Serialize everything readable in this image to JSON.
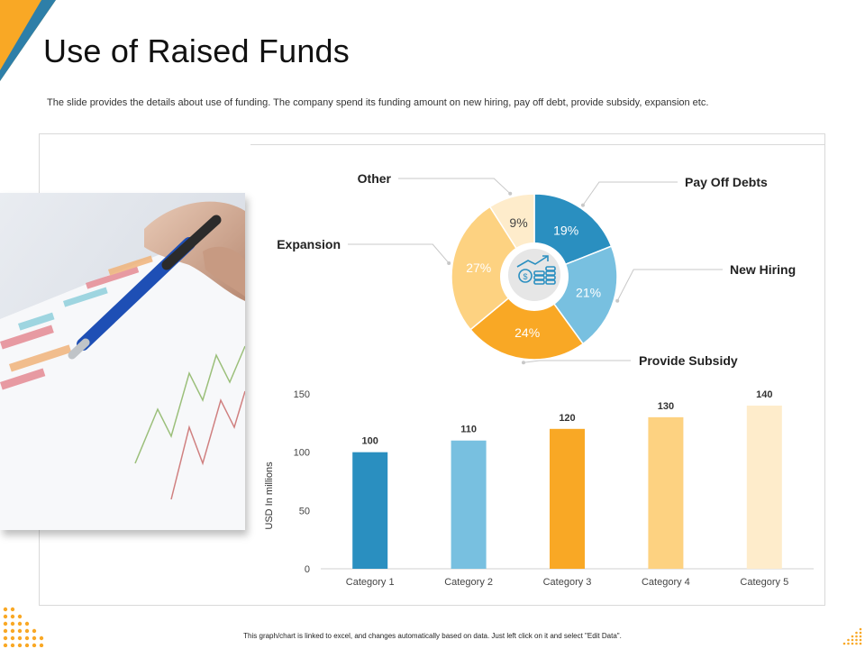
{
  "slide": {
    "title": "Use of Raised Funds",
    "subtitle": "The slide provides the details about use of funding. The company spend its funding amount on new hiring, pay off debt, provide subsidy, expansion etc.",
    "footer_note": "This graph/chart is linked to excel, and changes automatically based on data. Just left click on it and select \"Edit Data\".",
    "accent_color": "#F9A825",
    "accent_dark": "#2E7FA8",
    "photo_icon": "pen-on-chart-photo",
    "center_icon": "money-growth-icon"
  },
  "chart_data": [
    {
      "type": "pie",
      "style": "donut",
      "slices": [
        {
          "label": "Pay Off Debts",
          "value": 19,
          "display": "19%",
          "color": "#2A8FC0"
        },
        {
          "label": "New Hiring",
          "value": 21,
          "display": "21%",
          "color": "#78C0E0"
        },
        {
          "label": "Provide Subsidy",
          "value": 24,
          "display": "24%",
          "color": "#F9A825"
        },
        {
          "label": "Expansion",
          "value": 27,
          "display": "27%",
          "color": "#FDD281"
        },
        {
          "label": "Other",
          "value": 9,
          "display": "9%",
          "color": "#FEECCB"
        }
      ]
    },
    {
      "type": "bar",
      "categories": [
        "Category 1",
        "Category 2",
        "Category 3",
        "Category 4",
        "Category 5"
      ],
      "values": [
        100,
        110,
        120,
        130,
        140
      ],
      "colors": [
        "#2A8FC0",
        "#78C0E0",
        "#F9A825",
        "#FDD281",
        "#FEECCB"
      ],
      "ylabel": "USD In millions",
      "ylim": [
        0,
        150
      ],
      "yticks": [
        0,
        50,
        100,
        150
      ],
      "data_labels": true,
      "grid": false
    }
  ]
}
